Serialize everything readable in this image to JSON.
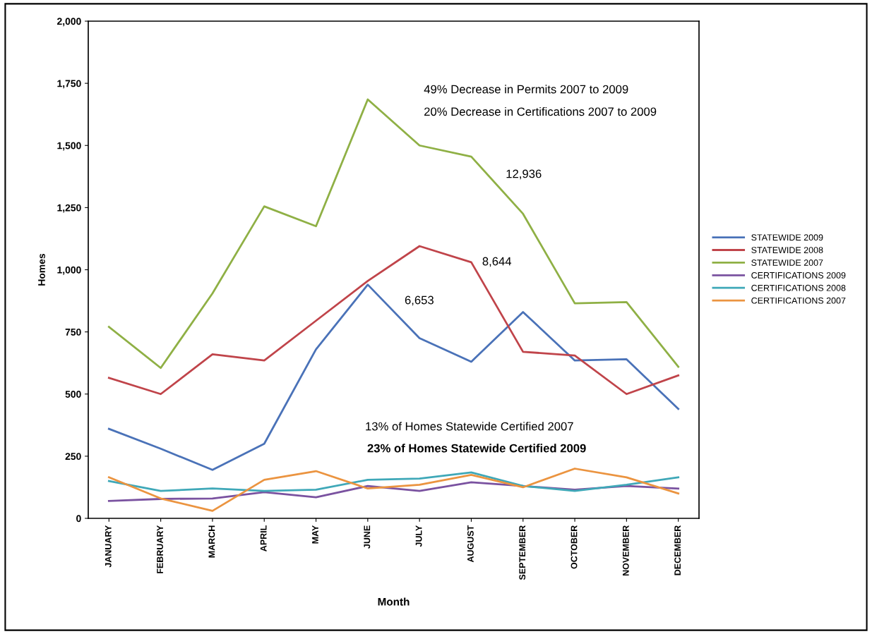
{
  "chart_data": {
    "type": "line",
    "xlabel": "Month",
    "ylabel": "Homes",
    "categories": [
      "JANUARY",
      "FEBRUARY",
      "MARCH",
      "APRIL",
      "MAY",
      "JUNE",
      "JULY",
      "AUGUST",
      "SEPTEMBER",
      "OCTOBER",
      "NOVEMBER",
      "DECEMBER"
    ],
    "series": [
      {
        "name": "STATEWIDE 2009",
        "color": "#4a72b8",
        "values": [
          360,
          280,
          195,
          300,
          680,
          940,
          725,
          630,
          830,
          635,
          640,
          440
        ]
      },
      {
        "name": "STATEWIDE 2008",
        "color": "#c0444a",
        "values": [
          565,
          500,
          660,
          635,
          795,
          955,
          1095,
          1030,
          670,
          655,
          500,
          575
        ]
      },
      {
        "name": "STATEWIDE 2007",
        "color": "#8fb045",
        "values": [
          770,
          605,
          905,
          1255,
          1175,
          1685,
          1500,
          1455,
          1225,
          865,
          870,
          610
        ]
      },
      {
        "name": "CERTIFICATIONS 2009",
        "color": "#7a52a0",
        "values": [
          70,
          78,
          80,
          105,
          85,
          130,
          110,
          145,
          130,
          115,
          130,
          120
        ]
      },
      {
        "name": "CERTIFICATIONS 2008",
        "color": "#3fa8b8",
        "values": [
          150,
          110,
          120,
          110,
          115,
          155,
          160,
          185,
          130,
          110,
          135,
          165
        ]
      },
      {
        "name": "CERTIFICATIONS 2007",
        "color": "#eb9440",
        "values": [
          165,
          80,
          30,
          155,
          190,
          120,
          135,
          175,
          125,
          200,
          165,
          100
        ]
      }
    ],
    "ylim": [
      0,
      2000
    ],
    "yticks": [
      0,
      250,
      500,
      750,
      {
        "value": 1000,
        "label": "1,000"
      },
      {
        "value": 1250,
        "label": "1,250"
      },
      {
        "value": 1500,
        "label": "1,500"
      },
      {
        "value": 1750,
        "label": "1,750"
      },
      {
        "value": 2000,
        "label": "2,000"
      }
    ],
    "annotations": [
      "49% Decrease in Permits 2007 to 2009",
      "20% Decrease in Certifications 2007 to 2009",
      "12,936",
      "8,644",
      "6,653",
      "13% of Homes Statewide Certified 2007",
      "23% of Homes Statewide Certified 2009"
    ],
    "legend": "right",
    "grid": false,
    "marker": "none",
    "line_style": "solid"
  }
}
